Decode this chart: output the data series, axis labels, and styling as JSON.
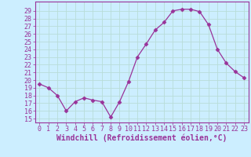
{
  "x": [
    0,
    1,
    2,
    3,
    4,
    5,
    6,
    7,
    8,
    9,
    10,
    11,
    12,
    13,
    14,
    15,
    16,
    17,
    18,
    19,
    20,
    21,
    22,
    23
  ],
  "y": [
    19.5,
    19.0,
    18.0,
    16.0,
    17.2,
    17.7,
    17.4,
    17.2,
    15.2,
    17.2,
    19.8,
    23.0,
    24.7,
    26.5,
    27.5,
    29.0,
    29.2,
    29.2,
    28.9,
    27.2,
    24.0,
    22.2,
    21.1,
    20.3
  ],
  "line_color": "#993399",
  "marker": "D",
  "marker_size": 2.5,
  "bg_color": "#cceeff",
  "grid_color": "#aaddcc",
  "xlabel": "Windchill (Refroidissement éolien,°C)",
  "ylabel_ticks": [
    15,
    16,
    17,
    18,
    19,
    20,
    21,
    22,
    23,
    24,
    25,
    26,
    27,
    28,
    29
  ],
  "ylim": [
    14.5,
    30.2
  ],
  "xlim": [
    -0.5,
    23.5
  ],
  "font_color": "#993399",
  "tick_fontsize": 6.0,
  "xlabel_fontsize": 7.0
}
